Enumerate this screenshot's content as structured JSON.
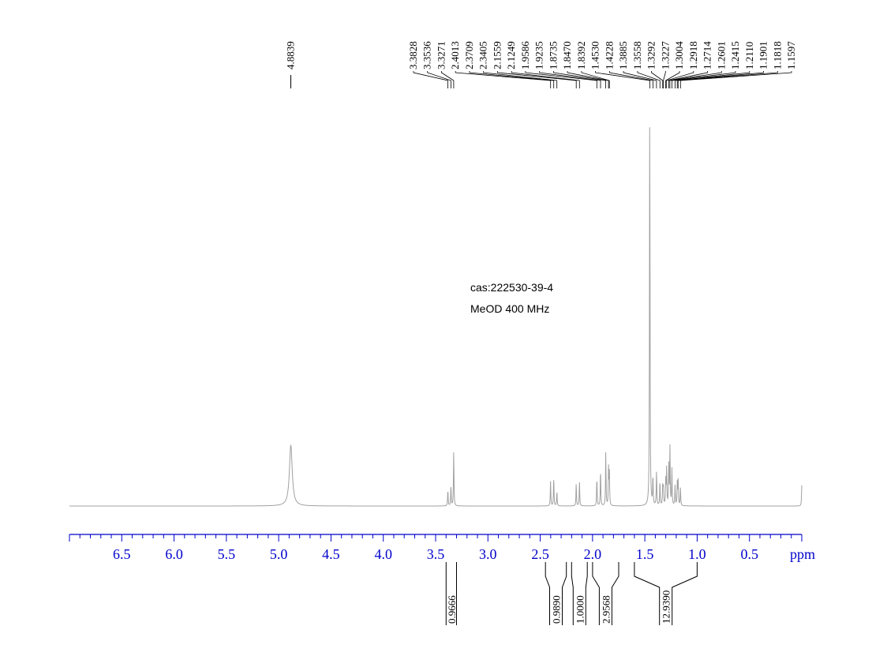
{
  "annotations": {
    "cas": "cas:222530-39-4",
    "conditions": "MeOD  400 MHz"
  },
  "colors": {
    "axis": "#0000cc",
    "trace": "#a0a0a0",
    "annotation": "#000000"
  },
  "chart_data": {
    "type": "line",
    "title": "",
    "xlabel": "ppm",
    "ylabel": "",
    "x_direction": "descending",
    "xlim": [
      7.0,
      0.0
    ],
    "xticks": [
      "6.5",
      "6.0",
      "5.5",
      "5.0",
      "4.5",
      "4.0",
      "3.5",
      "3.0",
      "2.5",
      "2.0",
      "1.5",
      "1.0",
      "0.5"
    ],
    "peak_labels": {
      "group1": [
        "4.8839"
      ],
      "group2": [
        "3.3828",
        "3.3536",
        "3.3271",
        "2.4013",
        "2.3709",
        "2.3405",
        "2.1559",
        "2.1249",
        "1.9586",
        "1.9235",
        "1.8735",
        "1.8470",
        "1.8392",
        "1.4530",
        "1.4228",
        "1.3885",
        "1.3558",
        "1.3292",
        "1.3227",
        "1.3004",
        "1.2918",
        "1.2714",
        "1.2601",
        "1.2415",
        "1.2110",
        "1.1901",
        "1.1818",
        "1.1597"
      ]
    },
    "integrals": [
      {
        "from": 3.4,
        "to": 3.3,
        "value": "0.9666"
      },
      {
        "from": 2.45,
        "to": 2.25,
        "value": "0.9890"
      },
      {
        "from": 2.2,
        "to": 2.05,
        "value": "1.0000"
      },
      {
        "from": 2.0,
        "to": 1.75,
        "value": "2.9568"
      },
      {
        "from": 1.6,
        "to": 1.0,
        "value": "12.9390"
      }
    ],
    "peaks": [
      {
        "ppm": 4.8839,
        "height": 0.148
      },
      {
        "ppm": 3.3828,
        "height": 0.04
      },
      {
        "ppm": 3.3536,
        "height": 0.05
      },
      {
        "ppm": 3.3271,
        "height": 0.135
      },
      {
        "ppm": 2.4013,
        "height": 0.06
      },
      {
        "ppm": 2.3709,
        "height": 0.07
      },
      {
        "ppm": 2.3405,
        "height": 0.035
      },
      {
        "ppm": 2.1559,
        "height": 0.055
      },
      {
        "ppm": 2.1249,
        "height": 0.06
      },
      {
        "ppm": 1.9586,
        "height": 0.07
      },
      {
        "ppm": 1.9235,
        "height": 0.09
      },
      {
        "ppm": 1.8735,
        "height": 0.13
      },
      {
        "ppm": 1.847,
        "height": 0.09
      },
      {
        "ppm": 1.8392,
        "height": 0.08
      },
      {
        "ppm": 1.453,
        "height": 1.0
      },
      {
        "ppm": 1.4228,
        "height": 0.07
      },
      {
        "ppm": 1.3885,
        "height": 0.085
      },
      {
        "ppm": 1.3558,
        "height": 0.06
      },
      {
        "ppm": 1.3292,
        "height": 0.05
      },
      {
        "ppm": 1.3227,
        "height": 0.045
      },
      {
        "ppm": 1.3004,
        "height": 0.06
      },
      {
        "ppm": 1.2918,
        "height": 0.09
      },
      {
        "ppm": 1.2714,
        "height": 0.1
      },
      {
        "ppm": 1.2601,
        "height": 0.14
      },
      {
        "ppm": 1.2415,
        "height": 0.09
      },
      {
        "ppm": 1.211,
        "height": 0.05
      },
      {
        "ppm": 1.1901,
        "height": 0.055
      },
      {
        "ppm": 1.1818,
        "height": 0.06
      },
      {
        "ppm": 1.1597,
        "height": 0.045
      },
      {
        "ppm": 0.0,
        "height": 0.05
      }
    ]
  }
}
